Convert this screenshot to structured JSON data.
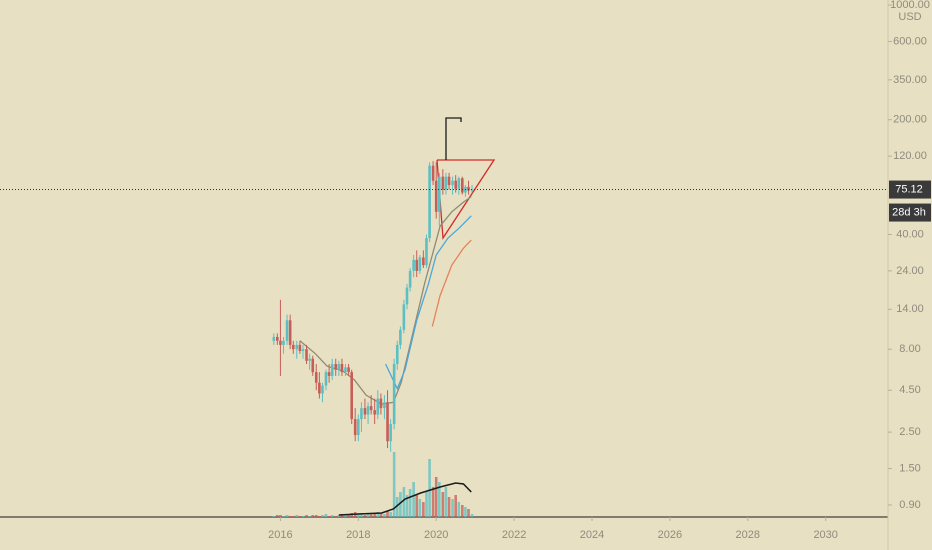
{
  "chart_data": {
    "type": "candlestick",
    "log_y": true,
    "currency": "USD",
    "countdown": "28d 3h",
    "up_color": "#5cbfc4",
    "down_color": "#c65d57",
    "xlim": [
      2008.8,
      2031.6
    ],
    "xticks": [
      2016,
      2018,
      2020,
      2022,
      2024,
      2026,
      2028,
      2030
    ],
    "ylim": [
      0.76,
      1073
    ],
    "yticks": [
      {
        "value": 0.9,
        "label": "0.90"
      },
      {
        "value": 1.5,
        "label": "1.50"
      },
      {
        "value": 2.5,
        "label": "2.50"
      },
      {
        "value": 4.5,
        "label": "4.50"
      },
      {
        "value": 8,
        "label": "8.00"
      },
      {
        "value": 14,
        "label": "14.00"
      },
      {
        "value": 24,
        "label": "24.00"
      },
      {
        "value": 40,
        "label": "40.00"
      },
      {
        "value": 120,
        "label": "120.00"
      },
      {
        "value": 200,
        "label": "200.00"
      },
      {
        "value": 350,
        "label": "350.00"
      },
      {
        "value": 600,
        "label": "600.00"
      },
      {
        "value": 1000,
        "label": "1000.00"
      }
    ],
    "x": [
      2015.83,
      2015.92,
      2016.0,
      2016.08,
      2016.17,
      2016.25,
      2016.33,
      2016.42,
      2016.5,
      2016.58,
      2016.67,
      2016.75,
      2016.83,
      2016.92,
      2017.0,
      2017.08,
      2017.17,
      2017.25,
      2017.33,
      2017.42,
      2017.5,
      2017.58,
      2017.67,
      2017.75,
      2017.83,
      2017.92,
      2018.0,
      2018.08,
      2018.17,
      2018.25,
      2018.33,
      2018.42,
      2018.5,
      2018.58,
      2018.67,
      2018.75,
      2018.83,
      2018.92,
      2019.0,
      2019.08,
      2019.17,
      2019.25,
      2019.33,
      2019.42,
      2019.5,
      2019.58,
      2019.67,
      2019.75,
      2019.83,
      2019.92,
      2020.0,
      2020.08,
      2020.17,
      2020.25,
      2020.33,
      2020.42,
      2020.5,
      2020.58,
      2020.67,
      2020.75,
      2020.83,
      2020.92
    ],
    "open": [
      9,
      9.5,
      9,
      8.5,
      9,
      12,
      8.5,
      8,
      8.5,
      7.8,
      8,
      6.8,
      7,
      5.8,
      5,
      4.3,
      4.8,
      5.8,
      5.5,
      6.5,
      6,
      6.5,
      5.8,
      6.2,
      5.8,
      3,
      2.4,
      3,
      3.5,
      3.2,
      3.6,
      3.4,
      3.2,
      4,
      3.5,
      3.8,
      2.2,
      2.8,
      6.5,
      8.5,
      10.5,
      15,
      19,
      24,
      28,
      24,
      29,
      26,
      38,
      105,
      85,
      55,
      90,
      75,
      90,
      80,
      85,
      76,
      88,
      72,
      78,
      74
    ],
    "high": [
      10,
      10,
      16,
      9.5,
      13,
      13,
      9,
      9,
      9,
      8.5,
      8.5,
      7.5,
      7.3,
      6.5,
      5.8,
      5,
      6,
      6.5,
      7,
      7,
      6.8,
      7,
      6.5,
      6.5,
      6,
      3.5,
      3.2,
      3.8,
      4,
      3.8,
      4.2,
      4,
      4.5,
      4.3,
      4.2,
      4.5,
      3,
      7,
      9,
      11,
      16,
      20,
      25,
      30,
      32,
      30,
      32,
      40,
      110,
      112,
      110,
      95,
      100,
      95,
      95,
      90,
      92,
      90,
      90,
      80,
      85,
      80
    ],
    "low": [
      8.5,
      8.5,
      5.5,
      7.5,
      8.5,
      8,
      7.5,
      7,
      7.5,
      7,
      6.5,
      6,
      5.5,
      4.5,
      4,
      3.8,
      4.5,
      5,
      5.2,
      5.5,
      5.5,
      5.5,
      5.5,
      5.5,
      2.8,
      2.2,
      2.2,
      2.5,
      3,
      2.8,
      3.2,
      2.8,
      3,
      3.2,
      3,
      2,
      1.9,
      2.6,
      6,
      8,
      10,
      14,
      18,
      22,
      22,
      23,
      25,
      25,
      36,
      80,
      50,
      45,
      70,
      70,
      75,
      70,
      72,
      70,
      70,
      68,
      70,
      72
    ],
    "close": [
      9.5,
      9,
      8.5,
      9,
      12,
      8.5,
      8,
      8.5,
      7.8,
      8,
      6.8,
      7,
      5.8,
      5,
      4.3,
      4.8,
      5.8,
      5.5,
      6.5,
      6,
      6.5,
      5.8,
      6.2,
      5.8,
      3,
      2.4,
      3,
      3.5,
      3.2,
      3.6,
      3.4,
      3.2,
      4,
      3.5,
      3.8,
      2.2,
      2.8,
      6.5,
      8.5,
      10.5,
      15,
      19,
      24,
      28,
      24,
      29,
      26,
      38,
      105,
      85,
      55,
      90,
      75,
      90,
      80,
      85,
      76,
      88,
      72,
      78,
      74,
      75.12
    ],
    "volume": [
      1,
      2,
      2,
      1,
      2,
      1,
      1,
      2,
      1,
      1,
      2,
      1,
      2,
      2,
      1,
      2,
      3,
      1,
      2,
      1,
      2,
      3,
      2,
      2,
      4,
      5,
      3,
      4,
      2,
      3,
      4,
      3,
      5,
      4,
      3,
      6,
      5,
      65,
      20,
      25,
      30,
      22,
      28,
      35,
      22,
      18,
      15,
      25,
      58,
      30,
      40,
      35,
      25,
      30,
      20,
      18,
      22,
      15,
      12,
      10,
      8,
      3
    ],
    "moving_averages": [
      {
        "color": "#8e8a78",
        "x": [
          2016.5,
          2016.9,
          2017.2,
          2017.6,
          2017.9,
          2018.2,
          2018.6,
          2018.9,
          2019.1,
          2019.4,
          2019.7,
          2019.9,
          2020.1,
          2020.4,
          2020.7,
          2020.9
        ],
        "values": [
          9,
          7.5,
          6.3,
          5.9,
          5.2,
          4.2,
          3.7,
          3.8,
          5,
          10,
          20,
          30,
          45,
          55,
          63,
          68
        ]
      },
      {
        "color": "#4aa8d8",
        "x": [
          2018.7,
          2019.0,
          2019.2,
          2019.5,
          2019.8,
          2020.0,
          2020.3,
          2020.6,
          2020.9
        ],
        "values": [
          6.5,
          4.6,
          6,
          12,
          20,
          30,
          38,
          44,
          52
        ]
      },
      {
        "color": "#e8825a",
        "x": [
          2019.9,
          2020.1,
          2020.4,
          2020.7,
          2020.9
        ],
        "values": [
          11,
          17,
          26,
          33,
          37
        ]
      }
    ],
    "volume_ma": {
      "color": "#1a1a1a",
      "x": [
        2017.5,
        2018.0,
        2018.6,
        2018.9,
        2019.2,
        2019.6,
        2020.1,
        2020.5,
        2020.7,
        2020.9
      ],
      "values": [
        2,
        3,
        4,
        8,
        18,
        24,
        30,
        34,
        33,
        25
      ]
    }
  }
}
